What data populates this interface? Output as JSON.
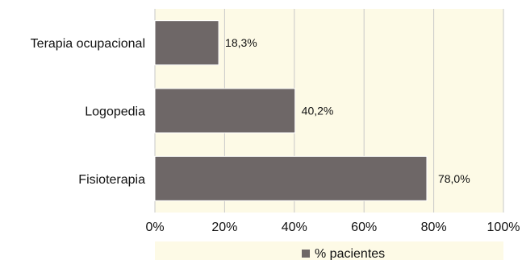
{
  "colors": {
    "plot_background": "#fdfae6",
    "bar_fill": "#6e6767",
    "bar_stroke": "#ffffff",
    "gridline": "#c8c8c8",
    "text": "#111111"
  },
  "chart_data": {
    "type": "bar",
    "orientation": "horizontal",
    "title": "",
    "xlabel": "",
    "ylabel": "",
    "categories": [
      "Terapia ocupacional",
      "Logopedia",
      "Fisioterapia"
    ],
    "series": [
      {
        "name": "% pacientes",
        "values": [
          18.3,
          40.2,
          78.0
        ],
        "labels": [
          "18,3%",
          "40,2%",
          "78,0%"
        ]
      }
    ],
    "xlim": [
      0,
      100
    ],
    "x_ticks": [
      0,
      20,
      40,
      60,
      80,
      100
    ],
    "x_tick_labels": [
      "0%",
      "20%",
      "40%",
      "60%",
      "80%",
      "100%"
    ],
    "grid": true,
    "legend_position": "bottom"
  }
}
